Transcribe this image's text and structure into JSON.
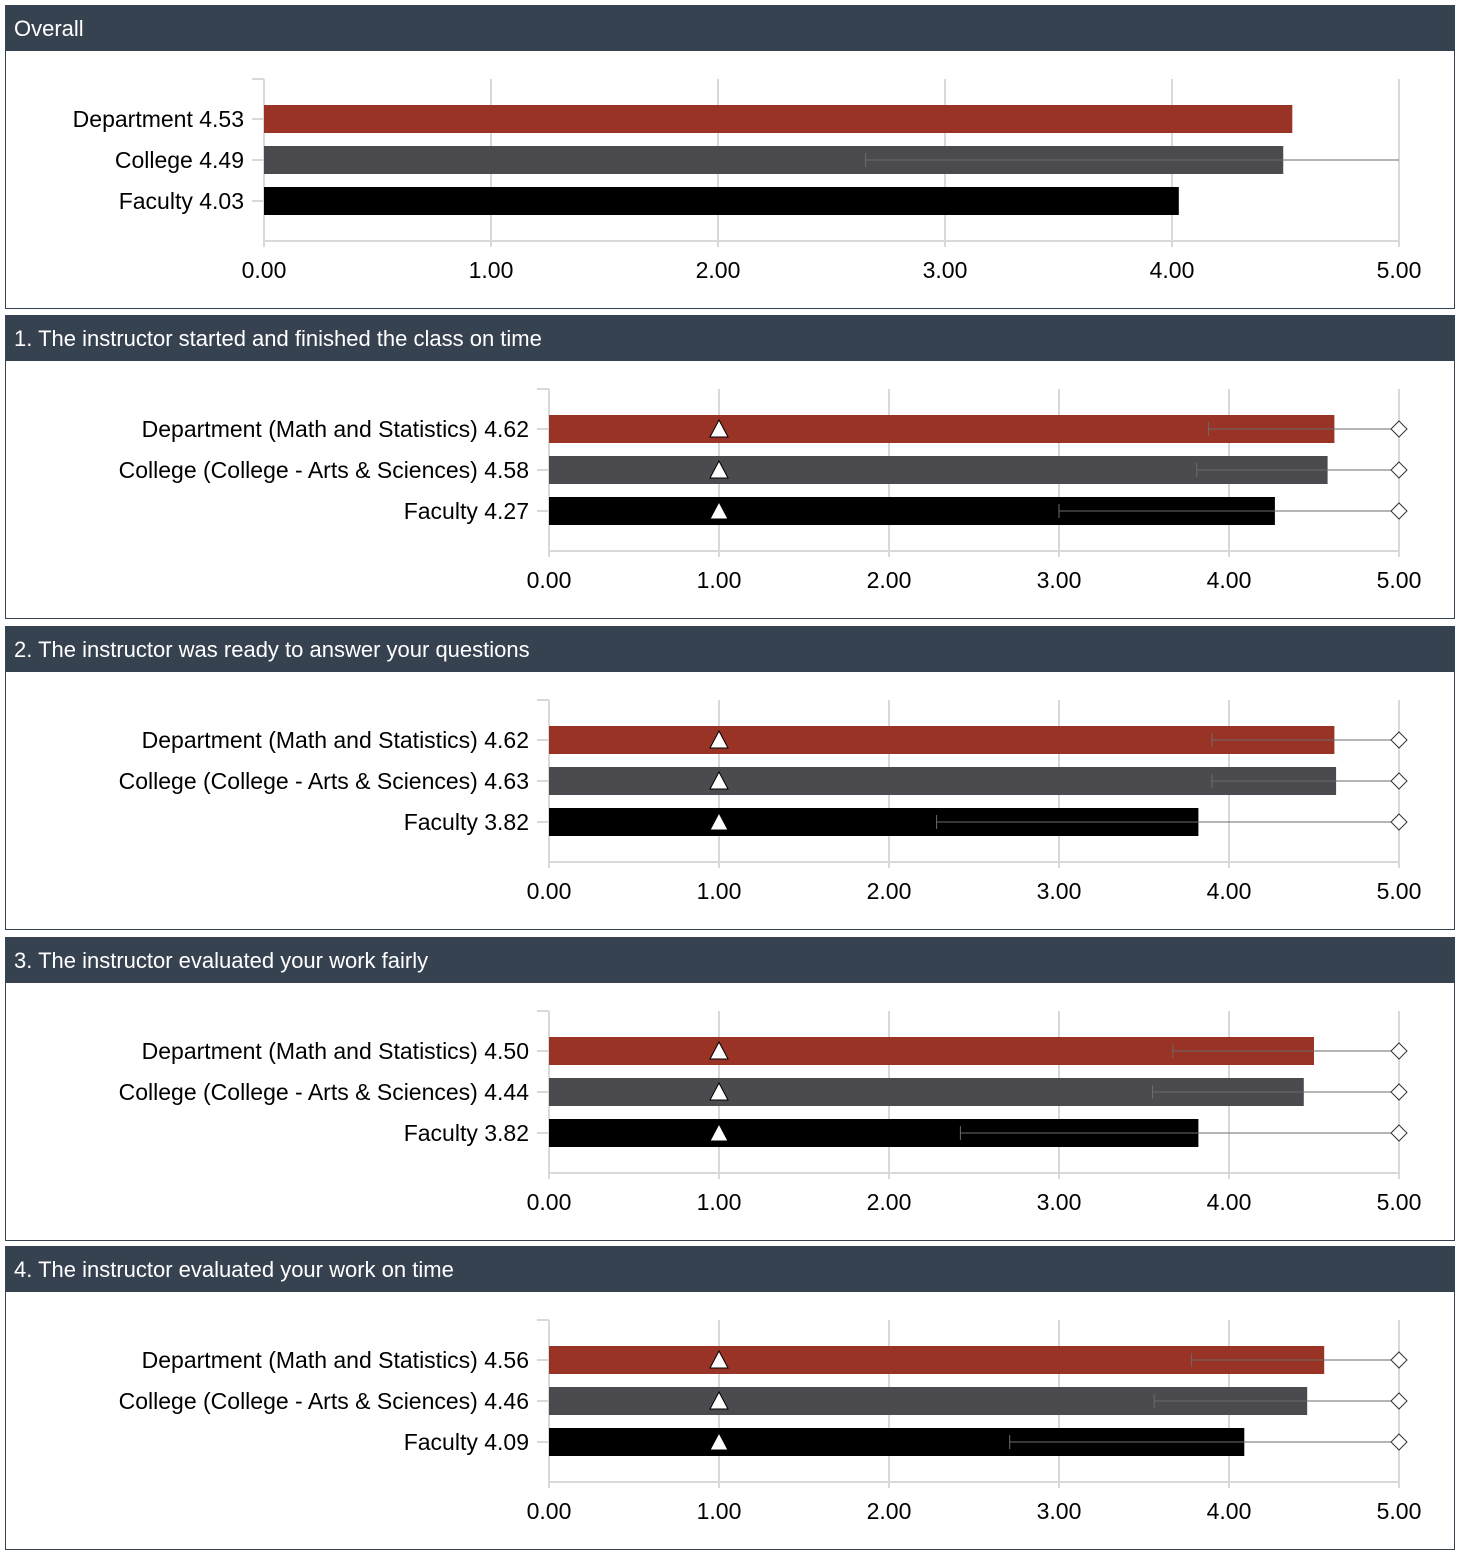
{
  "colors": {
    "header_bg": "#374251",
    "department": "#993325",
    "college": "#4b4b4f",
    "faculty": "#000000",
    "grid": "#d9d9d9"
  },
  "chart_data": [
    {
      "type": "bar",
      "orientation": "horizontal",
      "title": "Overall",
      "categories": [
        "Department 4.53",
        "College 4.49",
        "Faculty 4.03"
      ],
      "values": [
        4.53,
        4.49,
        4.03
      ],
      "error_ranges": [
        null,
        [
          2.65,
          5.0
        ],
        null
      ],
      "triangle_markers": [
        null,
        null,
        null
      ],
      "diamond_markers": [
        null,
        null,
        null
      ],
      "xlim": [
        0,
        5
      ],
      "ticks": [
        "0.00",
        "1.00",
        "2.00",
        "3.00",
        "4.00",
        "5.00"
      ],
      "grid": true
    },
    {
      "type": "bar",
      "orientation": "horizontal",
      "title": "1. The instructor started and finished the class on time",
      "categories": [
        "Department (Math and Statistics) 4.62",
        "College (College - Arts & Sciences) 4.58",
        "Faculty 4.27"
      ],
      "values": [
        4.62,
        4.58,
        4.27
      ],
      "error_ranges": [
        [
          3.88,
          5.0
        ],
        [
          3.81,
          5.0
        ],
        [
          3.0,
          5.0
        ]
      ],
      "triangle_markers": [
        1.0,
        1.0,
        1.0
      ],
      "diamond_markers": [
        5.0,
        5.0,
        5.0
      ],
      "xlim": [
        0,
        5
      ],
      "ticks": [
        "0.00",
        "1.00",
        "2.00",
        "3.00",
        "4.00",
        "5.00"
      ],
      "grid": true
    },
    {
      "type": "bar",
      "orientation": "horizontal",
      "title": "2. The instructor was ready to answer your questions",
      "categories": [
        "Department (Math and Statistics) 4.62",
        "College (College - Arts & Sciences) 4.63",
        "Faculty 3.82"
      ],
      "values": [
        4.62,
        4.63,
        3.82
      ],
      "error_ranges": [
        [
          3.9,
          5.0
        ],
        [
          3.9,
          5.0
        ],
        [
          2.28,
          5.0
        ]
      ],
      "triangle_markers": [
        1.0,
        1.0,
        1.0
      ],
      "diamond_markers": [
        5.0,
        5.0,
        5.0
      ],
      "xlim": [
        0,
        5
      ],
      "ticks": [
        "0.00",
        "1.00",
        "2.00",
        "3.00",
        "4.00",
        "5.00"
      ],
      "grid": true
    },
    {
      "type": "bar",
      "orientation": "horizontal",
      "title": "3. The instructor evaluated your work fairly",
      "categories": [
        "Department (Math and Statistics) 4.50",
        "College (College - Arts & Sciences) 4.44",
        "Faculty 3.82"
      ],
      "values": [
        4.5,
        4.44,
        3.82
      ],
      "error_ranges": [
        [
          3.67,
          5.0
        ],
        [
          3.55,
          5.0
        ],
        [
          2.42,
          5.0
        ]
      ],
      "triangle_markers": [
        1.0,
        1.0,
        1.0
      ],
      "diamond_markers": [
        5.0,
        5.0,
        5.0
      ],
      "xlim": [
        0,
        5
      ],
      "ticks": [
        "0.00",
        "1.00",
        "2.00",
        "3.00",
        "4.00",
        "5.00"
      ],
      "grid": true
    },
    {
      "type": "bar",
      "orientation": "horizontal",
      "title": "4. The instructor evaluated your work on time",
      "categories": [
        "Department (Math and Statistics) 4.56",
        "College (College - Arts & Sciences) 4.46",
        "Faculty 4.09"
      ],
      "values": [
        4.56,
        4.46,
        4.09
      ],
      "error_ranges": [
        [
          3.78,
          5.0
        ],
        [
          3.56,
          5.0
        ],
        [
          2.71,
          5.0
        ]
      ],
      "triangle_markers": [
        1.0,
        1.0,
        1.0
      ],
      "diamond_markers": [
        5.0,
        5.0,
        5.0
      ],
      "xlim": [
        0,
        5
      ],
      "ticks": [
        "0.00",
        "1.00",
        "2.00",
        "3.00",
        "4.00",
        "5.00"
      ],
      "grid": true
    }
  ]
}
